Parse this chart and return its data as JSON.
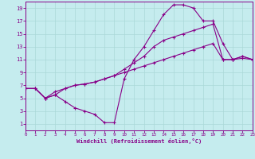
{
  "xlabel": "Windchill (Refroidissement éolien,°C)",
  "bg_color": "#c5ecee",
  "line_color": "#880088",
  "grid_color": "#aad8d8",
  "xlim": [
    0,
    23
  ],
  "ylim": [
    0,
    20
  ],
  "xtick_vals": [
    0,
    1,
    2,
    3,
    4,
    5,
    6,
    7,
    8,
    9,
    10,
    11,
    12,
    13,
    14,
    15,
    16,
    17,
    18,
    19,
    20,
    21,
    22,
    23
  ],
  "ytick_vals": [
    1,
    3,
    5,
    7,
    9,
    11,
    13,
    15,
    17,
    19
  ],
  "line1_x": [
    0,
    1,
    2,
    3,
    4,
    5,
    6,
    7,
    8,
    9,
    10,
    11,
    12,
    13,
    14,
    15,
    16,
    17,
    18,
    19,
    20,
    21,
    22,
    23
  ],
  "line1_y": [
    6.5,
    6.5,
    5.0,
    6.0,
    6.5,
    7.0,
    7.2,
    7.5,
    8.0,
    8.5,
    9.0,
    9.5,
    10.0,
    10.5,
    11.0,
    11.5,
    12.0,
    12.5,
    13.0,
    13.5,
    11.0,
    11.0,
    11.2,
    11.0
  ],
  "line2_x": [
    0,
    1,
    2,
    3,
    4,
    5,
    6,
    7,
    8,
    9,
    10,
    11,
    12,
    13,
    14,
    15,
    16,
    17,
    18,
    19,
    20,
    21,
    22,
    23
  ],
  "line2_y": [
    6.5,
    6.5,
    5.0,
    5.5,
    4.5,
    3.5,
    3.0,
    2.5,
    1.2,
    1.2,
    8.0,
    11.0,
    13.0,
    15.5,
    18.0,
    19.5,
    19.5,
    19.0,
    17.0,
    17.0,
    13.5,
    11.0,
    11.5,
    11.0
  ],
  "line3_x": [
    0,
    1,
    2,
    3,
    4,
    5,
    6,
    7,
    8,
    9,
    10,
    11,
    12,
    13,
    14,
    15,
    16,
    17,
    18,
    19,
    20,
    21,
    22,
    23
  ],
  "line3_y": [
    6.5,
    6.5,
    5.0,
    5.5,
    6.5,
    7.0,
    7.2,
    7.5,
    8.0,
    8.5,
    9.5,
    10.5,
    11.5,
    13.0,
    14.0,
    14.5,
    15.0,
    15.5,
    16.0,
    16.5,
    11.0,
    11.0,
    11.5,
    11.0
  ]
}
